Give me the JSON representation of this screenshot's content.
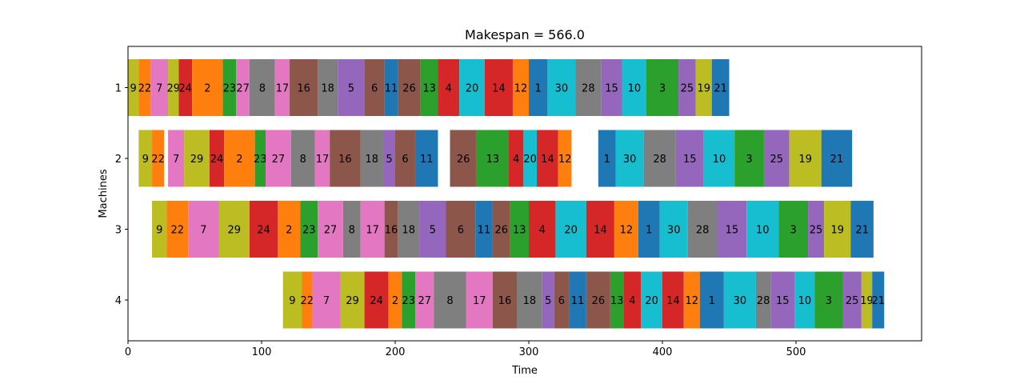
{
  "chart_data": {
    "type": "bar",
    "orientation": "horizontal-gantt",
    "title": "Makespan = 566.0",
    "xlabel": "Time",
    "ylabel": "Machines",
    "xlim": [
      0,
      594
    ],
    "x_ticks": [
      0,
      100,
      200,
      300,
      400,
      500
    ],
    "y_ticks": [
      "1",
      "2",
      "3",
      "4"
    ],
    "grid": false,
    "job_colors": {
      "9": "#bcbd22",
      "22": "#ff7f0e",
      "7": "#e377c2",
      "29": "#bcbd22",
      "24": "#d62728",
      "2": "#ff7f0e",
      "23": "#2ca02c",
      "27": "#e377c2",
      "8": "#7f7f7f",
      "17": "#e377c2",
      "16": "#8c564b",
      "18": "#7f7f7f",
      "5": "#9467bd",
      "6": "#8c564b",
      "11": "#1f77b4",
      "26": "#8c564b",
      "13": "#2ca02c",
      "4": "#d62728",
      "20": "#17becf",
      "14": "#d62728",
      "12": "#ff7f0e",
      "1": "#1f77b4",
      "30": "#17becf",
      "28": "#7f7f7f",
      "15": "#9467bd",
      "10": "#17becf",
      "3": "#2ca02c",
      "25": "#9467bd",
      "19": "#bcbd22",
      "21": "#1f77b4"
    },
    "machines": [
      {
        "name": "1",
        "tasks": [
          {
            "job": "9",
            "start": 0,
            "end": 8
          },
          {
            "job": "22",
            "start": 8,
            "end": 17
          },
          {
            "job": "7",
            "start": 17,
            "end": 30
          },
          {
            "job": "29",
            "start": 30,
            "end": 38
          },
          {
            "job": "24",
            "start": 38,
            "end": 48
          },
          {
            "job": "2",
            "start": 48,
            "end": 71
          },
          {
            "job": "23",
            "start": 71,
            "end": 81
          },
          {
            "job": "27",
            "start": 81,
            "end": 91
          },
          {
            "job": "8",
            "start": 91,
            "end": 110
          },
          {
            "job": "17",
            "start": 110,
            "end": 121
          },
          {
            "job": "16",
            "start": 121,
            "end": 142
          },
          {
            "job": "18",
            "start": 142,
            "end": 157
          },
          {
            "job": "5",
            "start": 157,
            "end": 177
          },
          {
            "job": "6",
            "start": 177,
            "end": 192
          },
          {
            "job": "11",
            "start": 192,
            "end": 202
          },
          {
            "job": "26",
            "start": 202,
            "end": 219
          },
          {
            "job": "13",
            "start": 219,
            "end": 232
          },
          {
            "job": "4",
            "start": 232,
            "end": 248
          },
          {
            "job": "20",
            "start": 248,
            "end": 267
          },
          {
            "job": "14",
            "start": 267,
            "end": 288
          },
          {
            "job": "12",
            "start": 288,
            "end": 300
          },
          {
            "job": "1",
            "start": 300,
            "end": 314
          },
          {
            "job": "30",
            "start": 314,
            "end": 335
          },
          {
            "job": "28",
            "start": 335,
            "end": 354
          },
          {
            "job": "15",
            "start": 354,
            "end": 370
          },
          {
            "job": "10",
            "start": 370,
            "end": 388
          },
          {
            "job": "3",
            "start": 388,
            "end": 412
          },
          {
            "job": "25",
            "start": 412,
            "end": 425
          },
          {
            "job": "19",
            "start": 425,
            "end": 437
          },
          {
            "job": "21",
            "start": 437,
            "end": 450
          }
        ]
      },
      {
        "name": "2",
        "tasks": [
          {
            "job": "9",
            "start": 8,
            "end": 18
          },
          {
            "job": "22",
            "start": 18,
            "end": 27
          },
          {
            "job": "7",
            "start": 30,
            "end": 42
          },
          {
            "job": "29",
            "start": 42,
            "end": 61
          },
          {
            "job": "24",
            "start": 61,
            "end": 72
          },
          {
            "job": "2",
            "start": 72,
            "end": 95
          },
          {
            "job": "23",
            "start": 95,
            "end": 103
          },
          {
            "job": "27",
            "start": 103,
            "end": 122
          },
          {
            "job": "8",
            "start": 122,
            "end": 140
          },
          {
            "job": "17",
            "start": 140,
            "end": 151
          },
          {
            "job": "16",
            "start": 151,
            "end": 174
          },
          {
            "job": "18",
            "start": 174,
            "end": 191
          },
          {
            "job": "5",
            "start": 191,
            "end": 200
          },
          {
            "job": "6",
            "start": 200,
            "end": 215
          },
          {
            "job": "11",
            "start": 215,
            "end": 232
          },
          {
            "job": "26",
            "start": 241,
            "end": 261
          },
          {
            "job": "13",
            "start": 261,
            "end": 285
          },
          {
            "job": "4",
            "start": 285,
            "end": 296
          },
          {
            "job": "20",
            "start": 296,
            "end": 306
          },
          {
            "job": "14",
            "start": 306,
            "end": 322
          },
          {
            "job": "12",
            "start": 322,
            "end": 332
          },
          {
            "job": "1",
            "start": 352,
            "end": 365
          },
          {
            "job": "30",
            "start": 365,
            "end": 386
          },
          {
            "job": "28",
            "start": 386,
            "end": 410
          },
          {
            "job": "15",
            "start": 410,
            "end": 431
          },
          {
            "job": "10",
            "start": 431,
            "end": 454
          },
          {
            "job": "3",
            "start": 454,
            "end": 476
          },
          {
            "job": "25",
            "start": 476,
            "end": 495
          },
          {
            "job": "19",
            "start": 495,
            "end": 519
          },
          {
            "job": "21",
            "start": 519,
            "end": 542
          }
        ]
      },
      {
        "name": "3",
        "tasks": [
          {
            "job": "9",
            "start": 18,
            "end": 29
          },
          {
            "job": "22",
            "start": 29,
            "end": 45
          },
          {
            "job": "7",
            "start": 45,
            "end": 68
          },
          {
            "job": "29",
            "start": 68,
            "end": 91
          },
          {
            "job": "24",
            "start": 91,
            "end": 112
          },
          {
            "job": "2",
            "start": 112,
            "end": 129
          },
          {
            "job": "23",
            "start": 129,
            "end": 142
          },
          {
            "job": "27",
            "start": 142,
            "end": 161
          },
          {
            "job": "8",
            "start": 161,
            "end": 174
          },
          {
            "job": "17",
            "start": 174,
            "end": 192
          },
          {
            "job": "16",
            "start": 192,
            "end": 202
          },
          {
            "job": "18",
            "start": 202,
            "end": 218
          },
          {
            "job": "5",
            "start": 218,
            "end": 238
          },
          {
            "job": "6",
            "start": 238,
            "end": 260
          },
          {
            "job": "11",
            "start": 260,
            "end": 273
          },
          {
            "job": "26",
            "start": 273,
            "end": 286
          },
          {
            "job": "13",
            "start": 286,
            "end": 300
          },
          {
            "job": "4",
            "start": 300,
            "end": 320
          },
          {
            "job": "20",
            "start": 320,
            "end": 343
          },
          {
            "job": "14",
            "start": 343,
            "end": 364
          },
          {
            "job": "12",
            "start": 364,
            "end": 382
          },
          {
            "job": "1",
            "start": 382,
            "end": 398
          },
          {
            "job": "30",
            "start": 398,
            "end": 419
          },
          {
            "job": "28",
            "start": 419,
            "end": 441
          },
          {
            "job": "15",
            "start": 441,
            "end": 463
          },
          {
            "job": "10",
            "start": 463,
            "end": 487
          },
          {
            "job": "3",
            "start": 487,
            "end": 509
          },
          {
            "job": "25",
            "start": 509,
            "end": 521
          },
          {
            "job": "19",
            "start": 521,
            "end": 541
          },
          {
            "job": "21",
            "start": 541,
            "end": 558
          }
        ]
      },
      {
        "name": "4",
        "tasks": [
          {
            "job": "9",
            "start": 116,
            "end": 130
          },
          {
            "job": "22",
            "start": 130,
            "end": 138
          },
          {
            "job": "7",
            "start": 138,
            "end": 159
          },
          {
            "job": "29",
            "start": 159,
            "end": 177
          },
          {
            "job": "24",
            "start": 177,
            "end": 195
          },
          {
            "job": "2",
            "start": 195,
            "end": 205
          },
          {
            "job": "23",
            "start": 205,
            "end": 215
          },
          {
            "job": "27",
            "start": 215,
            "end": 229
          },
          {
            "job": "8",
            "start": 229,
            "end": 253
          },
          {
            "job": "17",
            "start": 253,
            "end": 273
          },
          {
            "job": "16",
            "start": 273,
            "end": 291
          },
          {
            "job": "18",
            "start": 291,
            "end": 310
          },
          {
            "job": "5",
            "start": 310,
            "end": 319
          },
          {
            "job": "6",
            "start": 319,
            "end": 330
          },
          {
            "job": "11",
            "start": 330,
            "end": 343
          },
          {
            "job": "26",
            "start": 343,
            "end": 361
          },
          {
            "job": "13",
            "start": 361,
            "end": 371
          },
          {
            "job": "4",
            "start": 371,
            "end": 384
          },
          {
            "job": "20",
            "start": 384,
            "end": 400
          },
          {
            "job": "14",
            "start": 400,
            "end": 416
          },
          {
            "job": "12",
            "start": 416,
            "end": 428
          },
          {
            "job": "1",
            "start": 428,
            "end": 446
          },
          {
            "job": "30",
            "start": 446,
            "end": 470
          },
          {
            "job": "28",
            "start": 470,
            "end": 481
          },
          {
            "job": "15",
            "start": 481,
            "end": 499
          },
          {
            "job": "10",
            "start": 499,
            "end": 514
          },
          {
            "job": "3",
            "start": 514,
            "end": 535
          },
          {
            "job": "25",
            "start": 535,
            "end": 549
          },
          {
            "job": "19",
            "start": 549,
            "end": 557
          },
          {
            "job": "21",
            "start": 557,
            "end": 566
          }
        ]
      }
    ]
  }
}
